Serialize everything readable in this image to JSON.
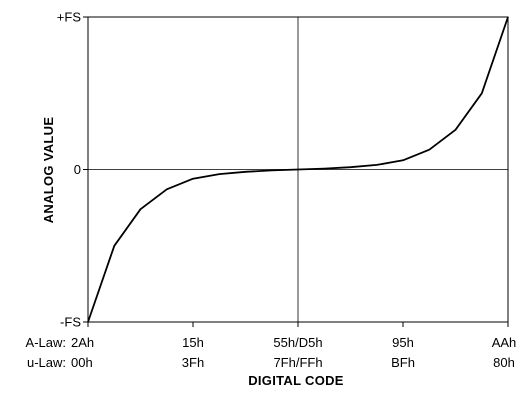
{
  "chart_data": {
    "type": "line",
    "title": "",
    "xlabel": "DIGITAL CODE",
    "ylabel": "ANALOG VALUE",
    "x_tick_rows": [
      {
        "name": "A-Law:",
        "labels": [
          "2Ah",
          "15h",
          "55h/D5h",
          "95h",
          "AAh"
        ]
      },
      {
        "name": "u-Law:",
        "labels": [
          "00h",
          "3Fh",
          "7Fh/FFh",
          "BFh",
          "80h"
        ]
      }
    ],
    "x_tick_positions": [
      0,
      0.25,
      0.5,
      0.75,
      1.0
    ],
    "xlim": [
      0,
      1
    ],
    "y_ticks": [
      {
        "value": 1,
        "label": "+FS"
      },
      {
        "value": 0,
        "label": "0"
      },
      {
        "value": -1,
        "label": "-FS"
      }
    ],
    "ylim": [
      -1,
      1
    ],
    "grid": {
      "vertical_center": true,
      "horizontal_zero": true
    },
    "series": [
      {
        "color": "#000000",
        "x": [
          0,
          0.0625,
          0.125,
          0.1875,
          0.25,
          0.3125,
          0.375,
          0.4375,
          0.5,
          0.5625,
          0.625,
          0.6875,
          0.75,
          0.8125,
          0.875,
          0.9375,
          1.0
        ],
        "y": [
          -1.0,
          -0.5,
          -0.26,
          -0.13,
          -0.06,
          -0.03,
          -0.015,
          -0.006,
          0,
          0.006,
          0.015,
          0.03,
          0.06,
          0.13,
          0.26,
          0.5,
          1.0
        ]
      }
    ]
  }
}
